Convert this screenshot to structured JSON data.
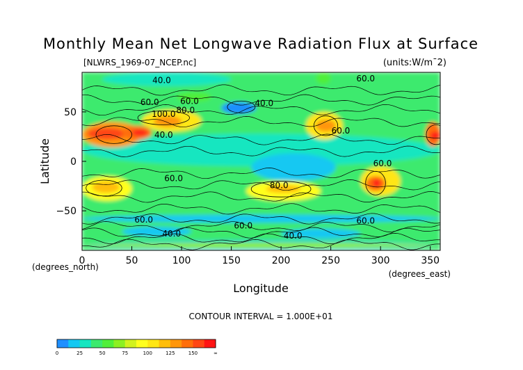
{
  "chart_data": {
    "type": "heatmap",
    "title": "Monthly Mean Net Longwave Radiation Flux at Surface",
    "source_label": "[NLWRS_1969-07_NCEP.nc]",
    "units_label": "(units:W/m¯2)",
    "xlabel": "Longitude",
    "ylabel": "Latitude",
    "x_unit_label": "(degrees_east)",
    "y_unit_label": "(degrees_north)",
    "xlim": [
      0,
      360
    ],
    "ylim": [
      -90,
      90
    ],
    "x_ticks": [
      0,
      50,
      100,
      150,
      200,
      250,
      300,
      350
    ],
    "y_ticks": [
      -50,
      0,
      50
    ],
    "contour_interval_text": "CONTOUR INTERVAL = 1.000E+01",
    "contour_labels": [
      {
        "text": "40.0",
        "lon": 80,
        "lat": 79
      },
      {
        "text": "60.0",
        "lon": 68,
        "lat": 57
      },
      {
        "text": "60.0",
        "lon": 108,
        "lat": 58
      },
      {
        "text": "100.0",
        "lon": 82,
        "lat": 45
      },
      {
        "text": "80.0",
        "lon": 104,
        "lat": 49
      },
      {
        "text": "40.0",
        "lon": 82,
        "lat": 24
      },
      {
        "text": "40.0",
        "lon": 183,
        "lat": 56
      },
      {
        "text": "60.0",
        "lon": 285,
        "lat": 81
      },
      {
        "text": "60.0",
        "lon": 260,
        "lat": 28
      },
      {
        "text": "60.0",
        "lon": 302,
        "lat": -5
      },
      {
        "text": "60.0",
        "lon": 92,
        "lat": -20
      },
      {
        "text": "80.0",
        "lon": 198,
        "lat": -27
      },
      {
        "text": "60.0",
        "lon": 62,
        "lat": -62
      },
      {
        "text": "60.0",
        "lon": 285,
        "lat": -63
      },
      {
        "text": "40.0",
        "lon": 90,
        "lat": -76
      },
      {
        "text": "60.0",
        "lon": 162,
        "lat": -68
      },
      {
        "text": "40.0",
        "lon": 212,
        "lat": -78
      }
    ],
    "color_scale": {
      "ticks": [
        "0",
        "25",
        "50",
        "75",
        "100",
        "125",
        "150",
        "∞"
      ],
      "colors": [
        "#1f8fff",
        "#14c8f2",
        "#16e6c0",
        "#3cea6e",
        "#50ef3a",
        "#8cf022",
        "#d2f21e",
        "#ffff1e",
        "#ffe614",
        "#ffbe0a",
        "#ff960a",
        "#ff6e0a",
        "#ff4614",
        "#ff1414"
      ]
    }
  }
}
